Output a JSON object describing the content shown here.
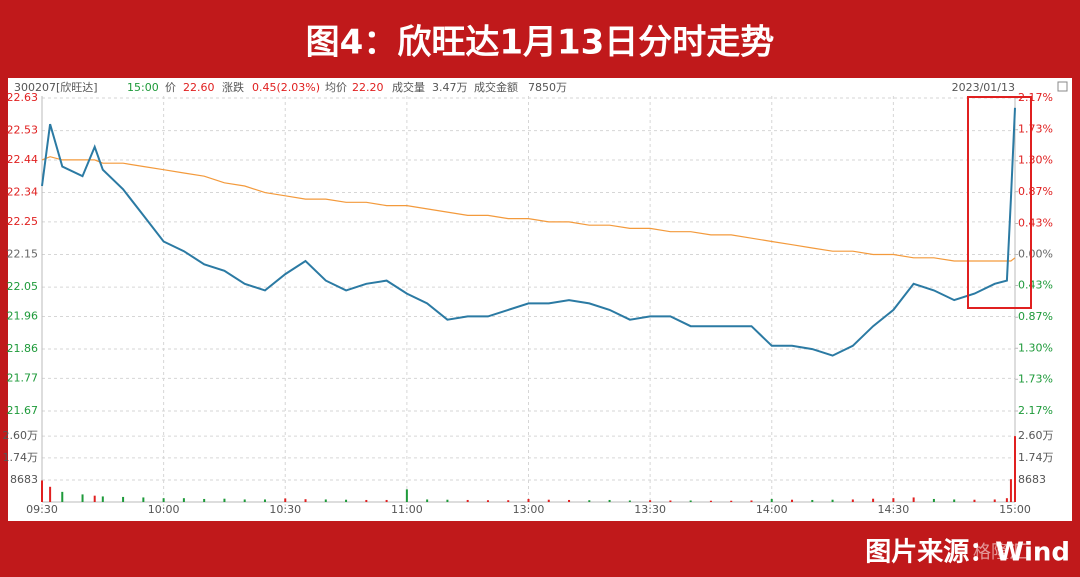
{
  "chart_data": {
    "type": "line",
    "title": "图4：欣旺达1月13日分时走势",
    "source": "图片来源：Wind",
    "watermark": "格隆汇",
    "date": "2023/01/13",
    "info": [
      "300207[欣旺达]",
      "15:00",
      "22.60",
      "涨跌",
      "0.45(2.03%)",
      "22.20",
      "成交量",
      "3.47万",
      "成交金额",
      "7850万"
    ],
    "x": [
      0,
      2,
      5,
      10,
      13,
      15,
      20,
      25,
      30,
      35,
      40,
      45,
      50,
      55,
      60,
      65,
      70,
      75,
      80,
      85,
      90,
      95,
      100,
      105,
      110,
      115,
      120,
      125,
      130,
      135,
      140,
      145,
      150,
      155,
      160,
      165,
      170,
      175,
      180,
      185,
      190,
      195,
      200,
      205,
      210,
      215,
      220,
      225,
      230,
      235,
      238,
      239,
      240
    ],
    "xlim": [
      0,
      240
    ],
    "xticks": [
      {
        "value": 0,
        "label": "09:30"
      },
      {
        "value": 30,
        "label": "10:00"
      },
      {
        "value": 60,
        "label": "10:30"
      },
      {
        "value": 90,
        "label": "11:00"
      },
      {
        "value": 120,
        "label": "13:00"
      },
      {
        "value": 150,
        "label": "13:30"
      },
      {
        "value": 180,
        "label": "14:00"
      },
      {
        "value": 210,
        "label": "14:30"
      },
      {
        "value": 240,
        "label": "15:00"
      }
    ],
    "series": [
      {
        "name": "价",
        "color": "#2b7aa3",
        "values": [
          22.36,
          22.55,
          22.42,
          22.39,
          22.48,
          22.41,
          22.35,
          22.27,
          22.19,
          22.16,
          22.12,
          22.1,
          22.06,
          22.04,
          22.09,
          22.13,
          22.07,
          22.04,
          22.06,
          22.07,
          22.03,
          22.0,
          21.95,
          21.96,
          21.96,
          21.98,
          22.0,
          22.0,
          22.01,
          22.0,
          21.98,
          21.95,
          21.96,
          21.96,
          21.93,
          21.93,
          21.93,
          21.93,
          21.87,
          21.87,
          21.86,
          21.84,
          21.87,
          21.93,
          21.98,
          22.06,
          22.04,
          22.01,
          22.03,
          22.06,
          22.07,
          22.32,
          22.6
        ]
      },
      {
        "name": "均价",
        "color": "#f39a3c",
        "values": [
          22.44,
          22.45,
          22.44,
          22.44,
          22.44,
          22.43,
          22.43,
          22.42,
          22.41,
          22.4,
          22.39,
          22.37,
          22.36,
          22.34,
          22.33,
          22.32,
          22.32,
          22.31,
          22.31,
          22.3,
          22.3,
          22.29,
          22.28,
          22.27,
          22.27,
          22.26,
          22.26,
          22.25,
          22.25,
          22.24,
          22.24,
          22.23,
          22.23,
          22.22,
          22.22,
          22.21,
          22.21,
          22.2,
          22.19,
          22.18,
          22.17,
          22.16,
          22.16,
          22.15,
          22.15,
          22.14,
          22.14,
          22.13,
          22.13,
          22.13,
          22.13,
          22.13,
          22.14
        ]
      }
    ],
    "ylim": [
      21.67,
      22.63
    ],
    "yticks": [
      22.63,
      22.53,
      22.44,
      22.34,
      22.25,
      22.15,
      22.05,
      21.96,
      21.86,
      21.77,
      21.67
    ],
    "y2lim": [
      -2.17,
      2.17
    ],
    "y2ticks": [
      {
        "value": 2.17,
        "label": "2.17%"
      },
      {
        "value": 1.73,
        "label": "1.73%"
      },
      {
        "value": 1.3,
        "label": "1.30%"
      },
      {
        "value": 0.87,
        "label": "0.87%"
      },
      {
        "value": 0.43,
        "label": "0.43%"
      },
      {
        "value": 0,
        "label": "0.00%"
      },
      {
        "value": -0.43,
        "label": "0.43%"
      },
      {
        "value": -0.87,
        "label": "0.87%"
      },
      {
        "value": -1.3,
        "label": "1.30%"
      },
      {
        "value": -1.73,
        "label": "1.73%"
      },
      {
        "value": -2.17,
        "label": "2.17%"
      }
    ],
    "volume": {
      "values": [
        8500,
        6000,
        4000,
        3000,
        2500,
        2200,
        2000,
        1800,
        1500,
        1500,
        1200,
        1300,
        1000,
        1000,
        1400,
        1100,
        1000,
        900,
        800,
        800,
        5000,
        1000,
        900,
        800,
        700,
        700,
        1200,
        900,
        800,
        700,
        800,
        600,
        700,
        600,
        600,
        500,
        500,
        600,
        1200,
        900,
        800,
        900,
        1000,
        1300,
        1500,
        1800,
        1200,
        1000,
        900,
        1000,
        1500,
        9000,
        26000
      ],
      "ylim": [
        0,
        26050
      ],
      "yticks": [
        {
          "value": 26000,
          "label": "2.60万"
        },
        {
          "value": 17400,
          "label": "1.74万"
        },
        8683
      ],
      "up_color": "#e02020",
      "down_color": "#1e9a3a"
    },
    "grid": true
  }
}
